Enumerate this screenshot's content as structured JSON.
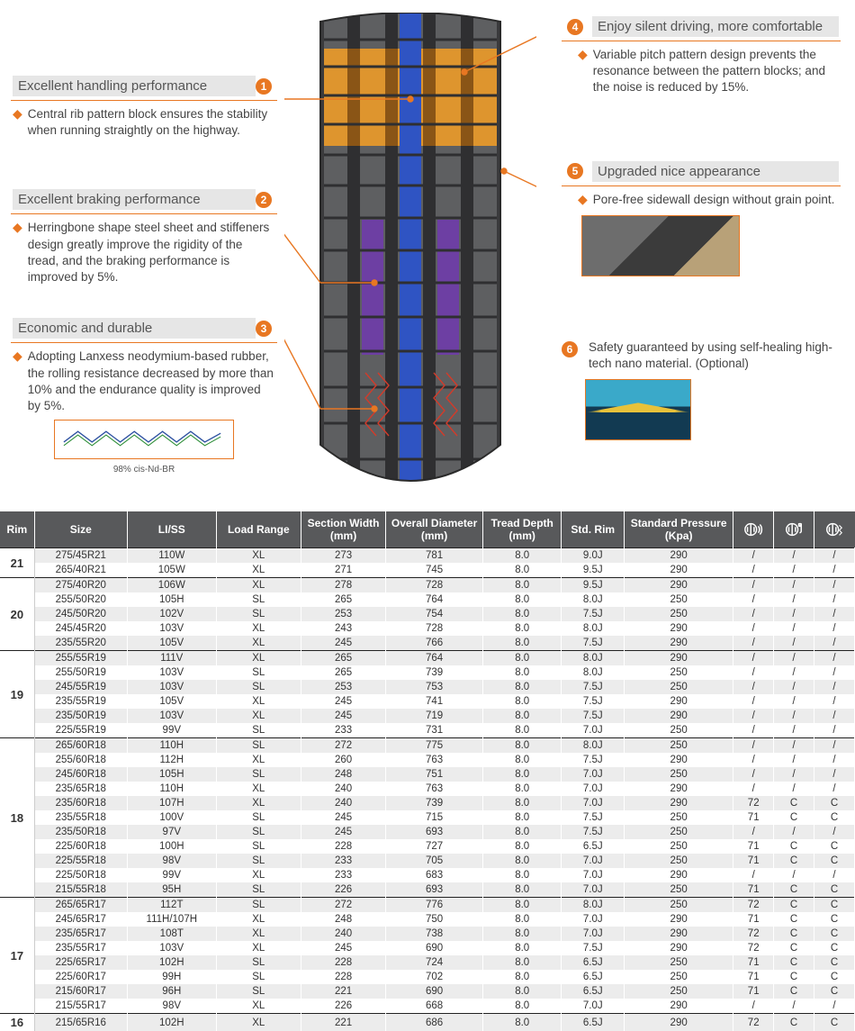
{
  "colors": {
    "accent": "#e87722",
    "header_bg": "#58595b",
    "row_alt": "#ececec"
  },
  "features": {
    "left": [
      {
        "n": "1",
        "title": "Excellent handling performance",
        "body": "Central rib pattern block ensures the stability when running straightly on the highway."
      },
      {
        "n": "2",
        "title": "Excellent braking performance",
        "body": "Herringbone shape steel sheet and stiffeners design greatly improve the rigidity of the tread, and the braking performance is improved by 5%."
      },
      {
        "n": "3",
        "title": "Economic and durable",
        "body": "Adopting Lanxess neodymium-based rubber, the rolling resistance decreased by more than 10% and the endurance quality is improved by 5%.",
        "note": "98% cis-Nd-BR"
      }
    ],
    "right": [
      {
        "n": "4",
        "title": "Enjoy silent driving, more comfortable",
        "body": "Variable pitch pattern design prevents the resonance between the pattern blocks; and the noise is reduced by 15%."
      },
      {
        "n": "5",
        "title": "Upgraded nice appearance",
        "body": "Pore-free sidewall design without grain point."
      },
      {
        "n": "6",
        "title": "",
        "body": "Safety guaranteed by using self-healing high-tech nano material. (Optional)"
      }
    ]
  },
  "tire_svg": {
    "body": "#5e5f61",
    "groove": "#2f2f31",
    "rib": "#2f54c3",
    "top_band": "#e99a2a",
    "purple": "#6d3fa3",
    "red_sketch": "#d23b2a"
  },
  "table": {
    "columns": [
      "Rim",
      "Size",
      "LI/SS",
      "Load Range",
      "Section Width (mm)",
      "Overall Diameter (mm)",
      "Tread Depth (mm)",
      "Std. Rim",
      "Standard Pressure (Kpa)",
      "icon_noise",
      "icon_fuel",
      "icon_wet"
    ],
    "groups": [
      {
        "rim": "21",
        "rows": [
          [
            "275/45R21",
            "110W",
            "XL",
            "273",
            "781",
            "8.0",
            "9.0J",
            "290",
            "/",
            "/",
            "/"
          ],
          [
            "265/40R21",
            "105W",
            "XL",
            "271",
            "745",
            "8.0",
            "9.5J",
            "290",
            "/",
            "/",
            "/"
          ]
        ]
      },
      {
        "rim": "20",
        "rows": [
          [
            "275/40R20",
            "106W",
            "XL",
            "278",
            "728",
            "8.0",
            "9.5J",
            "290",
            "/",
            "/",
            "/"
          ],
          [
            "255/50R20",
            "105H",
            "SL",
            "265",
            "764",
            "8.0",
            "8.0J",
            "250",
            "/",
            "/",
            "/"
          ],
          [
            "245/50R20",
            "102V",
            "SL",
            "253",
            "754",
            "8.0",
            "7.5J",
            "250",
            "/",
            "/",
            "/"
          ],
          [
            "245/45R20",
            "103V",
            "XL",
            "243",
            "728",
            "8.0",
            "8.0J",
            "290",
            "/",
            "/",
            "/"
          ],
          [
            "235/55R20",
            "105V",
            "XL",
            "245",
            "766",
            "8.0",
            "7.5J",
            "290",
            "/",
            "/",
            "/"
          ]
        ]
      },
      {
        "rim": "19",
        "rows": [
          [
            "255/55R19",
            "111V",
            "XL",
            "265",
            "764",
            "8.0",
            "8.0J",
            "290",
            "/",
            "/",
            "/"
          ],
          [
            "255/50R19",
            "103V",
            "SL",
            "265",
            "739",
            "8.0",
            "8.0J",
            "250",
            "/",
            "/",
            "/"
          ],
          [
            "245/55R19",
            "103V",
            "SL",
            "253",
            "753",
            "8.0",
            "7.5J",
            "250",
            "/",
            "/",
            "/"
          ],
          [
            "235/55R19",
            "105V",
            "XL",
            "245",
            "741",
            "8.0",
            "7.5J",
            "290",
            "/",
            "/",
            "/"
          ],
          [
            "235/50R19",
            "103V",
            "XL",
            "245",
            "719",
            "8.0",
            "7.5J",
            "290",
            "/",
            "/",
            "/"
          ],
          [
            "225/55R19",
            "99V",
            "SL",
            "233",
            "731",
            "8.0",
            "7.0J",
            "250",
            "/",
            "/",
            "/"
          ]
        ]
      },
      {
        "rim": "18",
        "rows": [
          [
            "265/60R18",
            "110H",
            "SL",
            "272",
            "775",
            "8.0",
            "8.0J",
            "250",
            "/",
            "/",
            "/"
          ],
          [
            "255/60R18",
            "112H",
            "XL",
            "260",
            "763",
            "8.0",
            "7.5J",
            "290",
            "/",
            "/",
            "/"
          ],
          [
            "245/60R18",
            "105H",
            "SL",
            "248",
            "751",
            "8.0",
            "7.0J",
            "250",
            "/",
            "/",
            "/"
          ],
          [
            "235/65R18",
            "110H",
            "XL",
            "240",
            "763",
            "8.0",
            "7.0J",
            "290",
            "/",
            "/",
            "/"
          ],
          [
            "235/60R18",
            "107H",
            "XL",
            "240",
            "739",
            "8.0",
            "7.0J",
            "290",
            "72",
            "C",
            "C"
          ],
          [
            "235/55R18",
            "100V",
            "SL",
            "245",
            "715",
            "8.0",
            "7.5J",
            "250",
            "71",
            "C",
            "C"
          ],
          [
            "235/50R18",
            "97V",
            "SL",
            "245",
            "693",
            "8.0",
            "7.5J",
            "250",
            "/",
            "/",
            "/"
          ],
          [
            "225/60R18",
            "100H",
            "SL",
            "228",
            "727",
            "8.0",
            "6.5J",
            "250",
            "71",
            "C",
            "C"
          ],
          [
            "225/55R18",
            "98V",
            "SL",
            "233",
            "705",
            "8.0",
            "7.0J",
            "250",
            "71",
            "C",
            "C"
          ],
          [
            "225/50R18",
            "99V",
            "XL",
            "233",
            "683",
            "8.0",
            "7.0J",
            "290",
            "/",
            "/",
            "/"
          ],
          [
            "215/55R18",
            "95H",
            "SL",
            "226",
            "693",
            "8.0",
            "7.0J",
            "250",
            "71",
            "C",
            "C"
          ]
        ]
      },
      {
        "rim": "17",
        "rows": [
          [
            "265/65R17",
            "112T",
            "SL",
            "272",
            "776",
            "8.0",
            "8.0J",
            "250",
            "72",
            "C",
            "C"
          ],
          [
            "245/65R17",
            "111H/107H",
            "XL",
            "248",
            "750",
            "8.0",
            "7.0J",
            "290",
            "71",
            "C",
            "C"
          ],
          [
            "235/65R17",
            "108T",
            "XL",
            "240",
            "738",
            "8.0",
            "7.0J",
            "290",
            "72",
            "C",
            "C"
          ],
          [
            "235/55R17",
            "103V",
            "XL",
            "245",
            "690",
            "8.0",
            "7.5J",
            "290",
            "72",
            "C",
            "C"
          ],
          [
            "225/65R17",
            "102H",
            "SL",
            "228",
            "724",
            "8.0",
            "6.5J",
            "250",
            "71",
            "C",
            "C"
          ],
          [
            "225/60R17",
            "99H",
            "SL",
            "228",
            "702",
            "8.0",
            "6.5J",
            "250",
            "71",
            "C",
            "C"
          ],
          [
            "215/60R17",
            "96H",
            "SL",
            "221",
            "690",
            "8.0",
            "6.5J",
            "250",
            "71",
            "C",
            "C"
          ],
          [
            "215/55R17",
            "98V",
            "XL",
            "226",
            "668",
            "8.0",
            "7.0J",
            "290",
            "/",
            "/",
            "/"
          ]
        ]
      },
      {
        "rim": "16",
        "rows": [
          [
            "215/65R16",
            "102H",
            "XL",
            "221",
            "686",
            "8.0",
            "6.5J",
            "290",
            "72",
            "C",
            "C"
          ]
        ]
      }
    ]
  }
}
